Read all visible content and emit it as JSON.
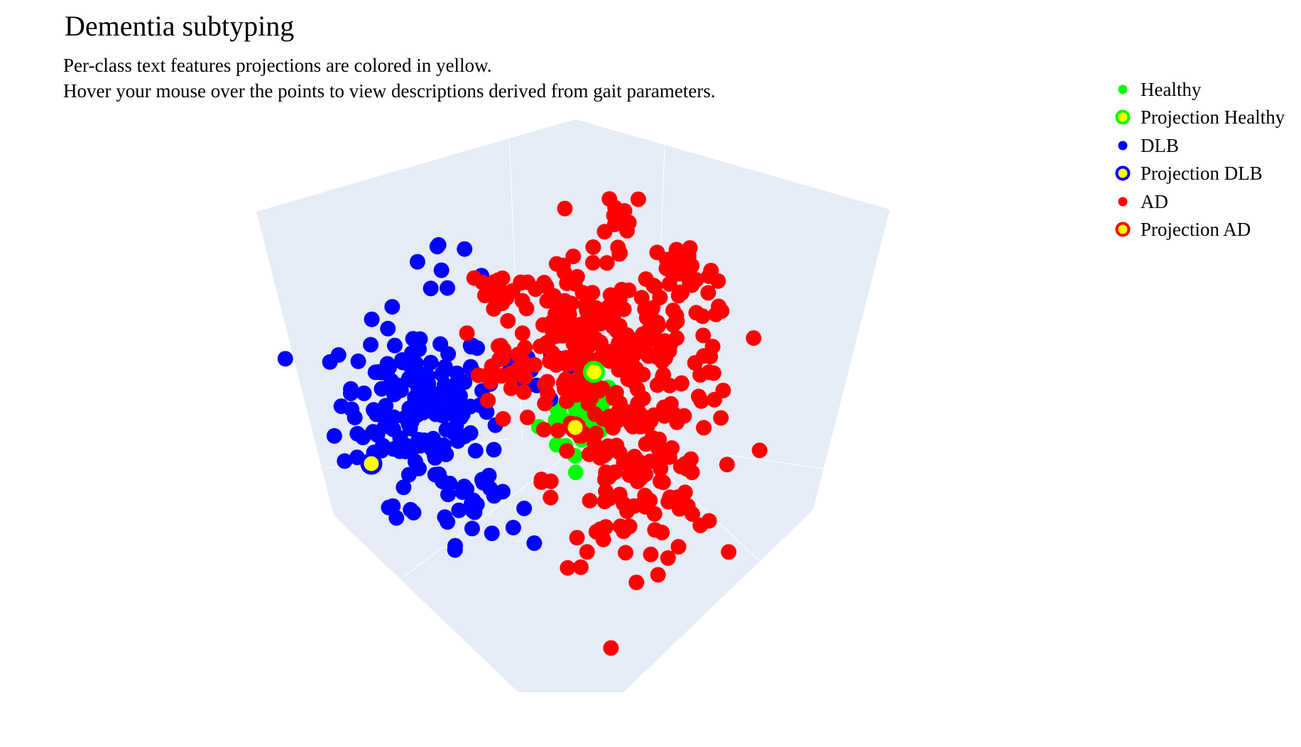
{
  "header": {
    "title": "Dementia subtyping",
    "subtitle_line1": "Per-class text features projections are colored in yellow.",
    "subtitle_line2": "Hover your mouse over the points to view descriptions derived from gait parameters."
  },
  "legend": {
    "items": [
      {
        "label": "Healthy",
        "marker": "dot",
        "color": "#00ff00"
      },
      {
        "label": "Projection  Healthy",
        "marker": "ring",
        "color": "#00ff00",
        "fill": "#ffff00"
      },
      {
        "label": "DLB",
        "marker": "dot",
        "color": "#0000ff"
      },
      {
        "label": "Projection  DLB",
        "marker": "ring",
        "color": "#0000ff",
        "fill": "#ffff00"
      },
      {
        "label": "AD",
        "marker": "dot",
        "color": "#ff0000"
      },
      {
        "label": "Projection  AD",
        "marker": "ring",
        "color": "#ff0000",
        "fill": "#ffff00"
      }
    ]
  },
  "chart_data": {
    "type": "scatter",
    "title": "Dementia subtyping",
    "scene": "3d",
    "axis_background": "#e5ecf6",
    "series": [
      {
        "name": "Healthy",
        "color": "#00ff00",
        "clusters": [
          {
            "x": 0.03,
            "y": 0.0,
            "n": 30,
            "spread": 0.09
          }
        ]
      },
      {
        "name": "DLB",
        "color": "#0000ff",
        "clusters": [
          {
            "x": -0.68,
            "y": 0.05,
            "n": 150,
            "spread": 0.16
          },
          {
            "x": -0.42,
            "y": -0.35,
            "n": 28,
            "spread": 0.09
          },
          {
            "x": -0.58,
            "y": 0.62,
            "n": 8,
            "spread": 0.1
          },
          {
            "x": -0.22,
            "y": 0.18,
            "n": 16,
            "spread": 0.07
          },
          {
            "x": -0.72,
            "y": -0.35,
            "n": 8,
            "spread": 0.06
          }
        ]
      },
      {
        "name": "AD",
        "color": "#ff0000",
        "clusters": [
          {
            "x": 0.03,
            "y": 0.3,
            "n": 170,
            "spread": 0.17
          },
          {
            "x": 0.4,
            "y": 0.22,
            "n": 80,
            "spread": 0.15
          },
          {
            "x": 0.25,
            "y": -0.28,
            "n": 110,
            "spread": 0.17
          },
          {
            "x": -0.33,
            "y": 0.5,
            "n": 22,
            "spread": 0.06
          },
          {
            "x": 0.46,
            "y": 0.6,
            "n": 30,
            "spread": 0.07
          },
          {
            "x": 0.2,
            "y": 0.84,
            "n": 12,
            "spread": 0.06
          },
          {
            "x": -0.3,
            "y": 0.16,
            "n": 14,
            "spread": 0.06
          }
        ]
      },
      {
        "name": "Projection  Healthy",
        "color": "#00ff00",
        "fill": "#ffff00",
        "points": [
          {
            "x": 0.08,
            "y": 0.18
          }
        ]
      },
      {
        "name": "Projection  DLB",
        "color": "#0000ff",
        "fill": "#ffff00",
        "points": [
          {
            "x": -0.87,
            "y": -0.2
          }
        ]
      },
      {
        "name": "Projection  AD",
        "color": "#ff0000",
        "fill": "#ffff00",
        "points": [
          {
            "x": 0.0,
            "y": -0.05
          }
        ]
      }
    ],
    "xlim": [
      -1,
      1
    ],
    "ylim": [
      -1,
      1
    ]
  }
}
